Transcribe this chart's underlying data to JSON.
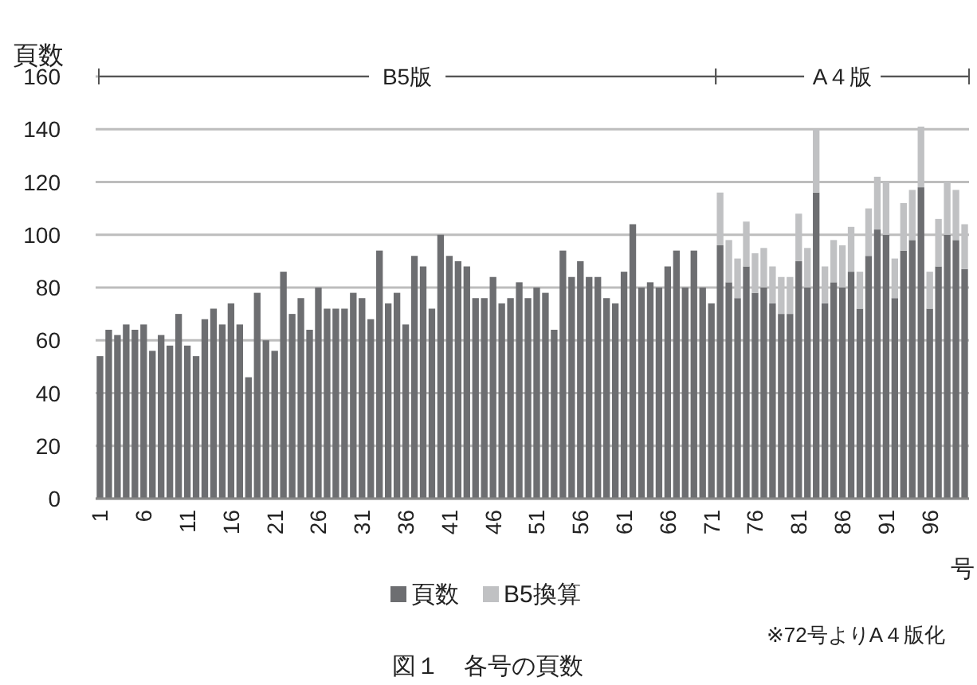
{
  "chart_data": {
    "type": "bar",
    "stacked": true,
    "title": "図１　各号の頁数",
    "ylabel": "頁数",
    "xlabel": "号",
    "categories": [
      "1",
      null,
      null,
      null,
      null,
      "6",
      null,
      null,
      null,
      null,
      "11",
      null,
      null,
      null,
      null,
      "16",
      null,
      null,
      null,
      null,
      "21",
      null,
      null,
      null,
      null,
      "26",
      null,
      null,
      null,
      null,
      "31",
      null,
      null,
      null,
      null,
      "36",
      null,
      null,
      null,
      null,
      "41",
      null,
      null,
      null,
      null,
      "46",
      null,
      null,
      null,
      null,
      "51",
      null,
      null,
      null,
      null,
      "56",
      null,
      null,
      null,
      null,
      "61",
      null,
      null,
      null,
      null,
      "66",
      null,
      null,
      null,
      null,
      "71",
      null,
      null,
      null,
      null,
      "76",
      null,
      null,
      null,
      null,
      "81",
      null,
      null,
      null,
      null,
      "86",
      null,
      null,
      null,
      null,
      "91",
      null,
      null,
      null,
      null,
      "96",
      null,
      null,
      null,
      null
    ],
    "series": [
      {
        "name": "頁数",
        "color": "#6d6e71",
        "values": [
          54,
          64,
          62,
          66,
          64,
          66,
          56,
          62,
          58,
          70,
          58,
          54,
          68,
          72,
          66,
          74,
          66,
          46,
          78,
          60,
          56,
          86,
          70,
          76,
          64,
          80,
          72,
          72,
          72,
          78,
          76,
          68,
          94,
          74,
          78,
          66,
          92,
          88,
          72,
          100,
          92,
          90,
          88,
          76,
          76,
          84,
          74,
          76,
          82,
          76,
          80,
          78,
          64,
          94,
          84,
          90,
          84,
          84,
          76,
          74,
          86,
          104,
          80,
          82,
          80,
          88,
          94,
          80,
          94,
          80,
          74,
          96,
          82,
          76,
          88,
          78,
          80,
          74,
          70,
          70,
          90,
          80,
          116,
          74,
          82,
          80,
          86,
          72,
          92,
          102,
          100,
          76,
          94,
          98,
          118,
          72,
          88,
          100,
          98,
          87
        ]
      },
      {
        "name": "B5換算",
        "color": "#c0c1c3",
        "values": [
          null,
          null,
          null,
          null,
          null,
          null,
          null,
          null,
          null,
          null,
          null,
          null,
          null,
          null,
          null,
          null,
          null,
          null,
          null,
          null,
          null,
          null,
          null,
          null,
          null,
          null,
          null,
          null,
          null,
          null,
          null,
          null,
          null,
          null,
          null,
          null,
          null,
          null,
          null,
          null,
          null,
          null,
          null,
          null,
          null,
          null,
          null,
          null,
          null,
          null,
          null,
          null,
          null,
          null,
          null,
          null,
          null,
          null,
          null,
          null,
          null,
          null,
          null,
          null,
          null,
          null,
          null,
          null,
          null,
          null,
          null,
          20,
          16,
          15,
          17,
          15,
          15,
          14,
          14,
          14,
          18,
          15,
          24,
          14,
          16,
          16,
          17,
          14,
          18,
          20,
          20,
          15,
          18,
          19,
          23,
          14,
          18,
          20,
          19,
          17
        ]
      }
    ],
    "ylim": [
      0,
      160
    ],
    "yticks": [
      0,
      20,
      40,
      60,
      80,
      100,
      120,
      140,
      160
    ],
    "grid": "y",
    "legend": "bottom",
    "annotations": [
      "B5版",
      "A４版",
      "※72号よりA４版化"
    ]
  }
}
